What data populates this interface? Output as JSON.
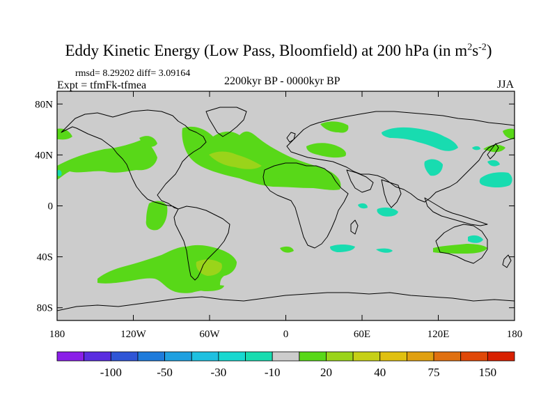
{
  "header": {
    "title_main": "Eddy Kinetic Energy (Low Pass, Bloomfield) at 200 hPa (in m",
    "title_sup1": "2",
    "title_s": "s",
    "title_sup2": "-2",
    "title_end": ")",
    "stats": "rmsd= 8.29202 diff= 3.09164",
    "expt": "Expt = tfmFk-tfmea",
    "period": "2200kyr BP - 0000kyr BP",
    "season": "JJA"
  },
  "chart_data": {
    "type": "heatmap",
    "title": "Eddy Kinetic Energy (Low Pass, Bloomfield) at 200 hPa (in m^2s^-2)",
    "subtitle": "2200kyr BP - 0000kyr BP",
    "projection": "cylindrical equidistant, global",
    "xlim": [
      -180,
      180
    ],
    "ylim": [
      -90,
      90
    ],
    "x_ticks": [
      -180,
      -120,
      -60,
      0,
      60,
      120,
      180
    ],
    "x_tick_labels": [
      "180",
      "120W",
      "60W",
      "0",
      "60E",
      "120E",
      "180"
    ],
    "y_ticks": [
      80,
      40,
      0,
      -40,
      -80
    ],
    "y_tick_labels": [
      "80N",
      "40N",
      "0",
      "40S",
      "80S"
    ],
    "colorbar": {
      "levels": [
        -150,
        -100,
        -75,
        -50,
        -40,
        -30,
        -20,
        -10,
        10,
        20,
        30,
        40,
        50,
        75,
        100,
        150
      ],
      "labels": [
        "-100",
        "-50",
        "-30",
        "-10",
        "20",
        "40",
        "75",
        "150"
      ],
      "colors": [
        "#8a1fe8",
        "#5a2de0",
        "#2f55d6",
        "#1e7bdb",
        "#1fa0e0",
        "#1ec0e0",
        "#18d8d0",
        "#18dcb0",
        "#cccccc",
        "#58d818",
        "#9ad41a",
        "#c6d016",
        "#e0c010",
        "#e0a010",
        "#e07010",
        "#e04808",
        "#d82000"
      ]
    },
    "background_color": "#cccccc",
    "regions": [
      {
        "sign": "positive",
        "class": "10 to 20",
        "area": "North Pacific/North America 30-50N"
      },
      {
        "sign": "positive",
        "class": "10 to 20",
        "area": "North Atlantic 20-55N"
      },
      {
        "sign": "positive",
        "class": "20 to 30",
        "area": "Mid Atlantic near 40N"
      },
      {
        "sign": "positive",
        "class": "10 to 20",
        "area": "South America / South Atlantic 30-60S"
      },
      {
        "sign": "positive",
        "class": "20 to 30",
        "area": "Southern South America near 45S"
      },
      {
        "sign": "positive",
        "class": "10 to 20",
        "area": "Southern Indian Ocean / Australia"
      },
      {
        "sign": "negative",
        "class": "-20 to -10",
        "area": "Eurasia / North Pacific 40-55N"
      },
      {
        "sign": "negative",
        "class": "-20 to -10",
        "area": "Southern Indian Ocean near 30S"
      }
    ]
  }
}
